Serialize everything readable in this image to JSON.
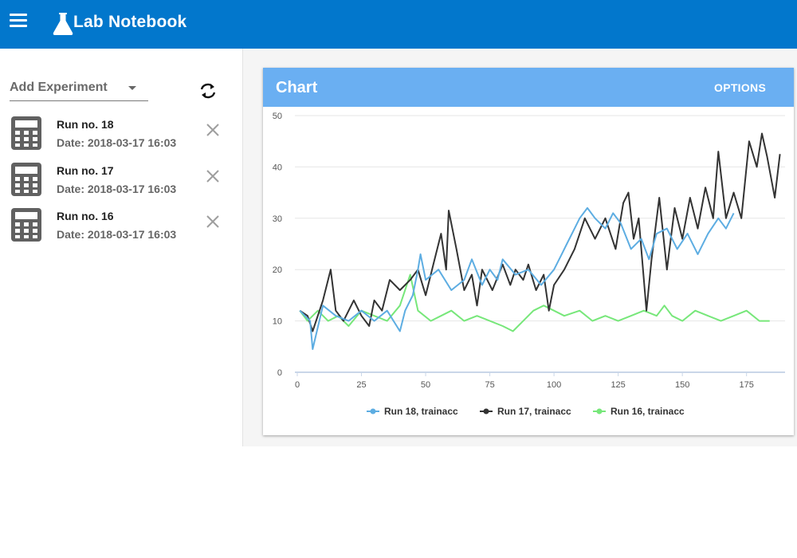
{
  "app": {
    "title": "Lab Notebook"
  },
  "sidebar": {
    "add_experiment_label": "Add Experiment",
    "runs": [
      {
        "name": "Run no. 18",
        "date": "Date: 2018-03-17 16:03"
      },
      {
        "name": "Run no. 17",
        "date": "Date: 2018-03-17 16:03"
      },
      {
        "name": "Run no. 16",
        "date": "Date: 2018-03-17 16:03"
      }
    ]
  },
  "card": {
    "title": "Chart",
    "options_label": "OPTIONS"
  },
  "colors": {
    "appbar": "#0277cc",
    "card_header": "#6aaff2",
    "run18": "#5dade2",
    "run17": "#333333",
    "run16": "#77e77a"
  },
  "chart_data": {
    "type": "line",
    "xlim": [
      0,
      190
    ],
    "ylim": [
      0,
      50
    ],
    "x_ticks": [
      0,
      25,
      50,
      75,
      100,
      125,
      150,
      175
    ],
    "y_ticks": [
      0,
      10,
      20,
      30,
      40,
      50
    ],
    "grid": "horizontal",
    "legend_position": "bottom",
    "series": [
      {
        "name": "Run 18, trainacc",
        "color": "#5dade2",
        "points": [
          [
            1,
            12
          ],
          [
            5,
            10
          ],
          [
            6,
            4.5
          ],
          [
            10,
            13
          ],
          [
            15,
            11
          ],
          [
            20,
            10
          ],
          [
            25,
            12
          ],
          [
            30,
            10
          ],
          [
            35,
            12
          ],
          [
            40,
            8
          ],
          [
            42,
            12
          ],
          [
            45,
            15
          ],
          [
            47,
            20
          ],
          [
            48,
            23
          ],
          [
            50,
            18
          ],
          [
            55,
            20
          ],
          [
            60,
            16
          ],
          [
            65,
            18
          ],
          [
            68,
            22
          ],
          [
            72,
            17
          ],
          [
            75,
            20
          ],
          [
            78,
            18
          ],
          [
            80,
            22
          ],
          [
            85,
            19
          ],
          [
            90,
            20
          ],
          [
            95,
            17
          ],
          [
            100,
            20
          ],
          [
            103,
            23
          ],
          [
            105,
            25
          ],
          [
            108,
            28
          ],
          [
            110,
            30
          ],
          [
            113,
            32
          ],
          [
            116,
            30
          ],
          [
            120,
            28
          ],
          [
            123,
            31
          ],
          [
            126,
            29
          ],
          [
            130,
            24
          ],
          [
            134,
            26
          ],
          [
            137,
            22
          ],
          [
            140,
            27
          ],
          [
            144,
            28
          ],
          [
            148,
            24
          ],
          [
            152,
            27
          ],
          [
            156,
            23
          ],
          [
            160,
            27
          ],
          [
            164,
            30
          ],
          [
            167,
            28
          ],
          [
            170,
            31
          ]
        ]
      },
      {
        "name": "Run 17, trainacc",
        "color": "#333333",
        "points": [
          [
            1,
            12
          ],
          [
            4,
            11
          ],
          [
            6,
            8
          ],
          [
            10,
            14
          ],
          [
            13,
            20
          ],
          [
            15,
            12
          ],
          [
            18,
            10
          ],
          [
            22,
            14
          ],
          [
            25,
            11
          ],
          [
            28,
            9
          ],
          [
            30,
            14
          ],
          [
            33,
            12
          ],
          [
            36,
            18
          ],
          [
            40,
            16
          ],
          [
            44,
            18
          ],
          [
            47,
            20
          ],
          [
            50,
            15
          ],
          [
            53,
            21
          ],
          [
            56,
            27
          ],
          [
            58,
            20
          ],
          [
            59,
            31.5
          ],
          [
            62,
            24
          ],
          [
            65,
            16
          ],
          [
            68,
            19
          ],
          [
            70,
            13
          ],
          [
            72,
            20
          ],
          [
            76,
            16
          ],
          [
            80,
            21
          ],
          [
            83,
            17
          ],
          [
            85,
            20
          ],
          [
            88,
            18
          ],
          [
            90,
            21
          ],
          [
            93,
            16
          ],
          [
            96,
            19
          ],
          [
            98,
            12
          ],
          [
            100,
            17
          ],
          [
            104,
            20
          ],
          [
            108,
            24
          ],
          [
            112,
            30
          ],
          [
            116,
            26
          ],
          [
            120,
            30
          ],
          [
            124,
            24
          ],
          [
            127,
            33
          ],
          [
            129,
            35
          ],
          [
            131,
            26
          ],
          [
            133,
            30
          ],
          [
            136,
            12
          ],
          [
            138,
            22
          ],
          [
            141,
            34
          ],
          [
            144,
            20
          ],
          [
            147,
            32
          ],
          [
            150,
            26
          ],
          [
            153,
            34
          ],
          [
            156,
            28
          ],
          [
            159,
            36
          ],
          [
            162,
            30
          ],
          [
            164,
            43
          ],
          [
            167,
            30
          ],
          [
            170,
            35
          ],
          [
            173,
            30
          ],
          [
            176,
            45
          ],
          [
            179,
            40
          ],
          [
            181,
            46.5
          ],
          [
            183,
            42
          ],
          [
            186,
            34
          ],
          [
            188,
            42.5
          ]
        ]
      },
      {
        "name": "Run 16, trainacc",
        "color": "#77e77a",
        "points": [
          [
            1,
            12
          ],
          [
            4,
            10
          ],
          [
            8,
            12
          ],
          [
            12,
            10
          ],
          [
            16,
            11
          ],
          [
            20,
            9
          ],
          [
            25,
            12
          ],
          [
            30,
            11
          ],
          [
            35,
            10
          ],
          [
            40,
            13
          ],
          [
            44,
            19
          ],
          [
            47,
            12
          ],
          [
            52,
            10
          ],
          [
            56,
            11
          ],
          [
            60,
            12
          ],
          [
            65,
            10
          ],
          [
            70,
            11
          ],
          [
            75,
            10
          ],
          [
            80,
            9
          ],
          [
            84,
            8
          ],
          [
            88,
            10
          ],
          [
            92,
            12
          ],
          [
            96,
            13
          ],
          [
            100,
            12
          ],
          [
            104,
            11
          ],
          [
            110,
            12
          ],
          [
            115,
            10
          ],
          [
            120,
            11
          ],
          [
            125,
            10
          ],
          [
            130,
            11
          ],
          [
            135,
            12
          ],
          [
            140,
            11
          ],
          [
            143,
            13
          ],
          [
            146,
            11
          ],
          [
            150,
            10
          ],
          [
            155,
            12
          ],
          [
            160,
            11
          ],
          [
            165,
            10
          ],
          [
            170,
            11
          ],
          [
            175,
            12
          ],
          [
            180,
            10
          ],
          [
            184,
            10
          ]
        ]
      }
    ]
  }
}
